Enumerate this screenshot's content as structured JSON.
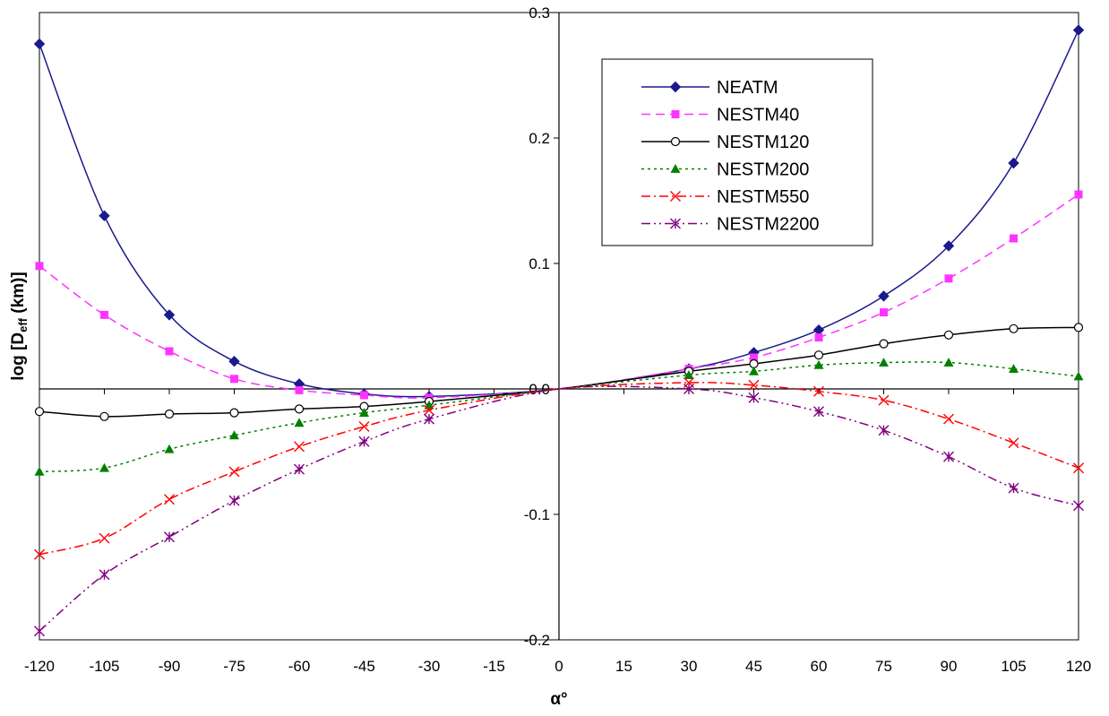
{
  "chart_data": {
    "type": "line",
    "title": "",
    "xlabel": "α°",
    "ylabel": "log [D",
    "ylabel_sub": "eff",
    "ylabel_tail": " (km)]",
    "xlim": [
      -120,
      120
    ],
    "ylim": [
      -0.2,
      0.3
    ],
    "xticks": [
      -120,
      -105,
      -90,
      -75,
      -60,
      -45,
      -30,
      -15,
      0,
      15,
      30,
      45,
      60,
      75,
      90,
      105,
      120
    ],
    "xtick_labels": [
      "-120",
      "-105",
      "-90",
      "-75",
      "-60",
      "-45",
      "-30",
      "-15",
      "0",
      "15",
      "30",
      "45",
      "60",
      "75",
      "90",
      "105",
      "120"
    ],
    "yticks": [
      -0.2,
      -0.1,
      0.0,
      0.1,
      0.2,
      0.3
    ],
    "ytick_labels": [
      "-0.2",
      "-0.1",
      "0.0",
      "0.1",
      "0.2",
      "0.3"
    ],
    "legend_position": "top-right",
    "grid": false,
    "series": [
      {
        "name": "NEATM",
        "color": "#1a1a8c",
        "dash": "",
        "marker": "diamond",
        "x": [
          -120,
          -105,
          -90,
          -75,
          -60,
          -45,
          -30,
          0,
          30,
          45,
          60,
          75,
          90,
          105,
          120
        ],
        "y": [
          0.275,
          0.138,
          0.059,
          0.022,
          0.004,
          -0.004,
          -0.006,
          0.0,
          0.016,
          0.029,
          0.047,
          0.074,
          0.114,
          0.18,
          0.286
        ]
      },
      {
        "name": "NESTM40",
        "color": "#ff33ff",
        "dash": "10,6",
        "marker": "square",
        "x": [
          -120,
          -105,
          -90,
          -75,
          -60,
          -45,
          -30,
          0,
          30,
          45,
          60,
          75,
          90,
          105,
          120
        ],
        "y": [
          0.098,
          0.059,
          0.03,
          0.008,
          -0.001,
          -0.005,
          -0.007,
          0.0,
          0.016,
          0.025,
          0.041,
          0.061,
          0.088,
          0.12,
          0.155
        ]
      },
      {
        "name": "NESTM120",
        "color": "#000000",
        "dash": "",
        "marker": "circle",
        "x": [
          -120,
          -105,
          -90,
          -75,
          -60,
          -45,
          -30,
          0,
          30,
          45,
          60,
          75,
          90,
          105,
          120
        ],
        "y": [
          -0.018,
          -0.022,
          -0.02,
          -0.019,
          -0.016,
          -0.014,
          -0.01,
          0.0,
          0.014,
          0.02,
          0.027,
          0.036,
          0.043,
          0.048,
          0.049
        ]
      },
      {
        "name": "NESTM200",
        "color": "#008000",
        "dash": "3,4",
        "marker": "triangle",
        "x": [
          -120,
          -105,
          -90,
          -75,
          -60,
          -45,
          -30,
          0,
          30,
          45,
          60,
          75,
          90,
          105,
          120
        ],
        "y": [
          -0.066,
          -0.063,
          -0.048,
          -0.037,
          -0.027,
          -0.019,
          -0.013,
          0.0,
          0.011,
          0.014,
          0.019,
          0.021,
          0.021,
          0.016,
          0.01
        ]
      },
      {
        "name": "NESTM550",
        "color": "#ff0000",
        "dash": "10,4,2,4",
        "marker": "x",
        "x": [
          -120,
          -105,
          -90,
          -75,
          -60,
          -45,
          -30,
          0,
          30,
          45,
          60,
          75,
          90,
          105,
          120
        ],
        "y": [
          -0.132,
          -0.119,
          -0.088,
          -0.066,
          -0.046,
          -0.03,
          -0.017,
          0.0,
          0.005,
          0.003,
          -0.002,
          -0.009,
          -0.024,
          -0.043,
          -0.063
        ]
      },
      {
        "name": "NESTM2200",
        "color": "#800080",
        "dash": "10,4,2,4,2,4",
        "marker": "star",
        "x": [
          -120,
          -105,
          -90,
          -75,
          -60,
          -45,
          -30,
          0,
          30,
          45,
          60,
          75,
          90,
          105,
          120
        ],
        "y": [
          -0.193,
          -0.148,
          -0.118,
          -0.089,
          -0.064,
          -0.042,
          -0.024,
          0.0,
          0.0,
          -0.007,
          -0.018,
          -0.033,
          -0.054,
          -0.079,
          -0.093
        ]
      }
    ]
  }
}
